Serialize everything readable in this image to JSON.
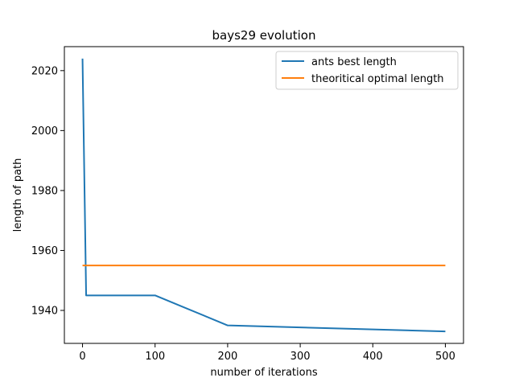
{
  "chart_data": {
    "type": "line",
    "title": "bays29 evolution",
    "xlabel": "number of iterations",
    "ylabel": "length of path",
    "xlim": [
      -25,
      525
    ],
    "ylim": [
      1929,
      2028
    ],
    "xticks": [
      0,
      100,
      200,
      300,
      400,
      500
    ],
    "yticks": [
      1940,
      1960,
      1980,
      2000,
      2020
    ],
    "grid": false,
    "legend_position": "top-right",
    "series": [
      {
        "name": "ants best length",
        "color": "#1f77b4",
        "x": [
          0,
          5,
          100,
          200,
          500
        ],
        "y": [
          2024,
          1945,
          1945,
          1935,
          1933
        ]
      },
      {
        "name": "theoritical optimal length",
        "color": "#ff7f0e",
        "x": [
          0,
          500
        ],
        "y": [
          1955,
          1955
        ]
      }
    ]
  }
}
